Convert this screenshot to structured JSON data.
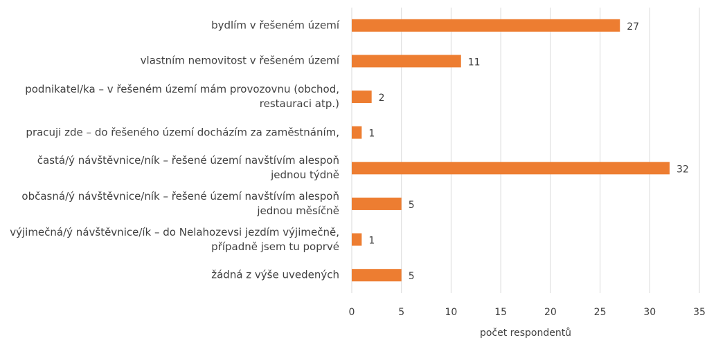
{
  "chart_data": {
    "type": "bar",
    "orientation": "horizontal",
    "xlabel": "počet respondentů",
    "categories": [
      "bydlím v řešeném území",
      "vlastním nemovitost v řešeném území",
      "podnikatel/ka – v řešeném území mám provozovnu (obchod, restauraci atp.)",
      "pracuji zde – do řešeného území docházím za zaměstnáním,",
      "častá/ý návštěvnice/ník – řešené území navštívím alespoň jednou týdně",
      "občasná/ý návštěvnice/ník – řešené území navštívím alespoň jednou měsíčně",
      "výjimečná/ý návštěvnice/ík – do Nelahozevsi jezdím výjimečně, případně jsem tu poprvé",
      "žádná z výše uvedených"
    ],
    "values": [
      27,
      11,
      2,
      1,
      32,
      5,
      1,
      5
    ],
    "color": "#ed7d31",
    "xlim": [
      0,
      35
    ],
    "xticks": [
      0,
      5,
      10,
      15,
      20,
      25,
      30,
      35
    ],
    "grid": true
  }
}
